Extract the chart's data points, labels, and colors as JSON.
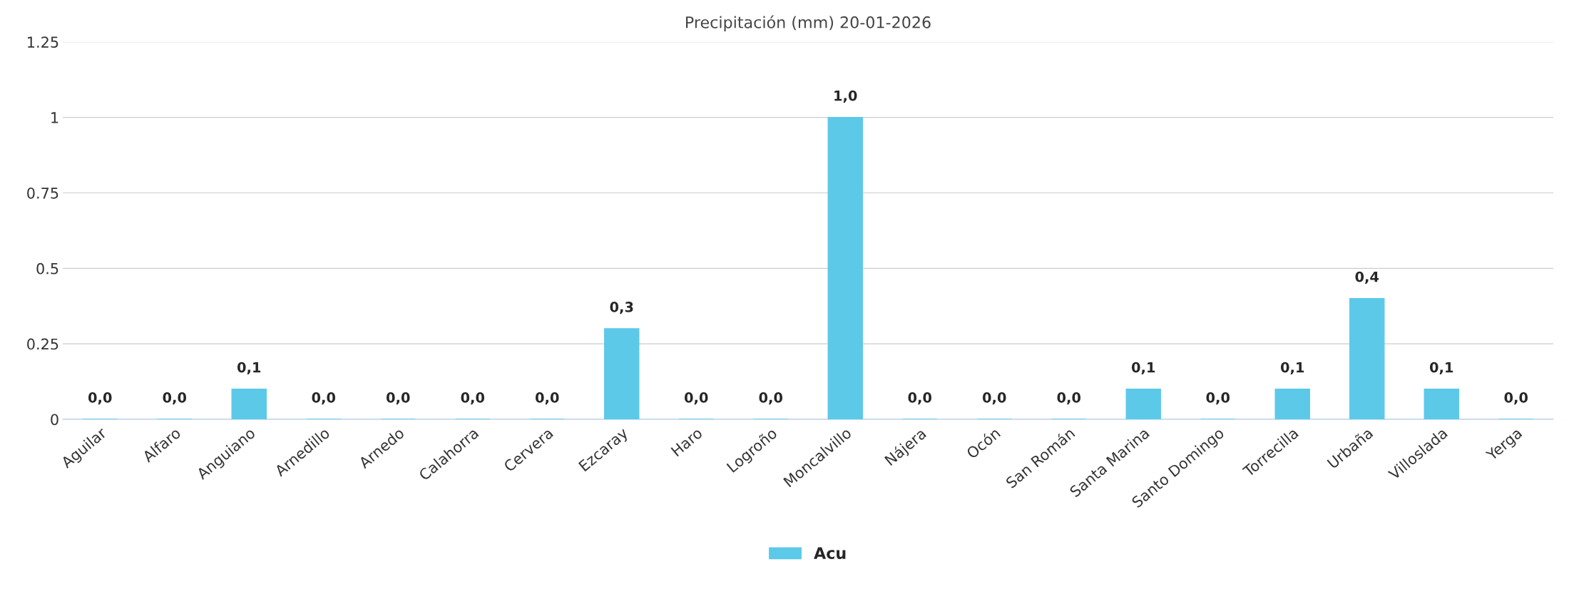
{
  "chart_data": {
    "type": "bar",
    "title": "Precipitación (mm) 20-01-2026",
    "categories": [
      "Aguilar",
      "Alfaro",
      "Anguiano",
      "Arnedillo",
      "Arnedo",
      "Calahorra",
      "Cervera",
      "Ezcaray",
      "Haro",
      "Logroño",
      "Moncalvillo",
      "Nájera",
      "Ocón",
      "San Román",
      "Santa Marina",
      "Santo Domingo",
      "Torrecilla",
      "Urbaña",
      "Villoslada",
      "Yerga"
    ],
    "series": [
      {
        "name": "Acu",
        "color": "#5cc9e9",
        "values": [
          0,
          0,
          0.1,
          0,
          0,
          0,
          0,
          0.3,
          0,
          0,
          1.0,
          0,
          0,
          0,
          0.1,
          0,
          0.1,
          0.4,
          0.1,
          0
        ],
        "value_labels": [
          "0,0",
          "0,0",
          "0,1",
          "0,0",
          "0,0",
          "0,0",
          "0,0",
          "0,3",
          "0,0",
          "0,0",
          "1,0",
          "0,0",
          "0,0",
          "0,0",
          "0,1",
          "0,0",
          "0,1",
          "0,4",
          "0,1",
          "0,0"
        ]
      }
    ],
    "ylim": [
      0,
      1.25
    ],
    "yticks": [
      0,
      0.25,
      0.5,
      0.75,
      1,
      1.25
    ],
    "grid": "y",
    "legend": "bottom"
  }
}
